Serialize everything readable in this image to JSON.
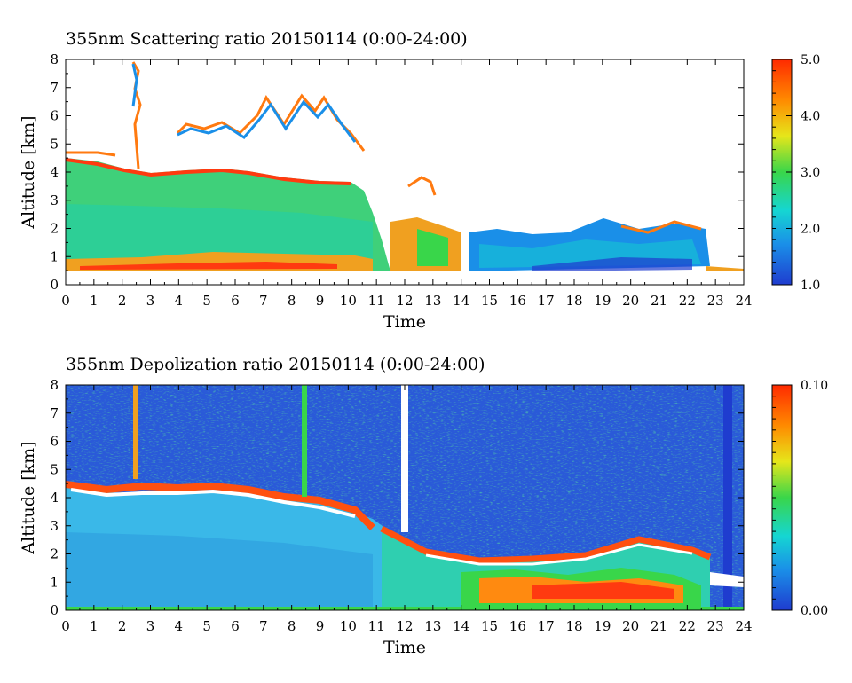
{
  "chart_data": [
    {
      "type": "heatmap",
      "title": "355nm Scattering ratio  20150114 (0:00-24:00)",
      "xlabel": "Time",
      "ylabel": "Altitude [km]",
      "xlim": [
        0,
        24
      ],
      "ylim": [
        0,
        8
      ],
      "x_ticks": [
        "0",
        "1",
        "2",
        "3",
        "4",
        "5",
        "6",
        "7",
        "8",
        "9",
        "10",
        "11",
        "12",
        "13",
        "14",
        "15",
        "16",
        "17",
        "18",
        "19",
        "20",
        "21",
        "22",
        "23",
        "24"
      ],
      "y_ticks": [
        "0",
        "1",
        "2",
        "3",
        "4",
        "5",
        "6",
        "7",
        "8"
      ],
      "colorbar": {
        "min": 1.0,
        "max": 5.0,
        "labels": [
          "1.0",
          "2.0",
          "3.0",
          "4.0",
          "5.0"
        ]
      },
      "colormap": [
        "#1f3ccf",
        "#1a8fe8",
        "#15d6d2",
        "#39d64a",
        "#e6e61a",
        "#ff8a00",
        "#ff2a00"
      ],
      "grid": false,
      "approx_features": {
        "cloud_base_km_by_hour": [
          4.4,
          4.2,
          4.0,
          3.9,
          4.0,
          4.0,
          4.0,
          3.9,
          3.8,
          3.7,
          3.6,
          2.0,
          2.2,
          3.0,
          0.5
        ],
        "low_layer_top_km_by_hour": [
          1.4,
          1.3,
          1.2,
          1.2,
          1.1,
          1.1,
          1.1,
          1.1,
          1.0,
          1.0,
          1.0
        ],
        "upper_cloud_tops_km": [
          [
            2.5,
            7.9
          ],
          [
            8.6,
            6.9
          ],
          [
            7.1,
            6.7
          ]
        ],
        "boundary_layer_after_14h_km": 2.0
      }
    },
    {
      "type": "heatmap",
      "title": "355nm Depolization ratio  20150114 (0:00-24:00)",
      "xlabel": "Time",
      "ylabel": "Altitude [km]",
      "xlim": [
        0,
        24
      ],
      "ylim": [
        0,
        8
      ],
      "x_ticks": [
        "0",
        "1",
        "2",
        "3",
        "4",
        "5",
        "6",
        "7",
        "8",
        "9",
        "10",
        "11",
        "12",
        "13",
        "14",
        "15",
        "16",
        "17",
        "18",
        "19",
        "20",
        "21",
        "22",
        "23",
        "24"
      ],
      "y_ticks": [
        "0",
        "1",
        "2",
        "3",
        "4",
        "5",
        "6",
        "7",
        "8"
      ],
      "colorbar": {
        "min": 0.0,
        "max": 0.1,
        "labels": [
          "0.00",
          "0.10"
        ]
      },
      "colormap": [
        "#1f3ccf",
        "#1a8fe8",
        "#15d6d2",
        "#39d64a",
        "#e6e61a",
        "#ff8a00",
        "#ff2a00"
      ],
      "grid": false,
      "approx_features": {
        "cloud_base_km_by_hour": [
          4.5,
          4.3,
          4.2,
          4.2,
          4.3,
          4.3,
          4.2,
          4.1,
          4.0,
          3.9,
          3.7,
          2.9,
          2.5,
          2.3,
          2.1,
          2.0,
          2.0,
          2.1,
          2.2,
          2.3,
          2.4,
          2.3,
          2.2,
          1.5,
          1.2
        ],
        "noisy_background_above_cloud": true,
        "high_depol_layer_after_14h_km": [
          0.3,
          1.6
        ]
      }
    }
  ]
}
